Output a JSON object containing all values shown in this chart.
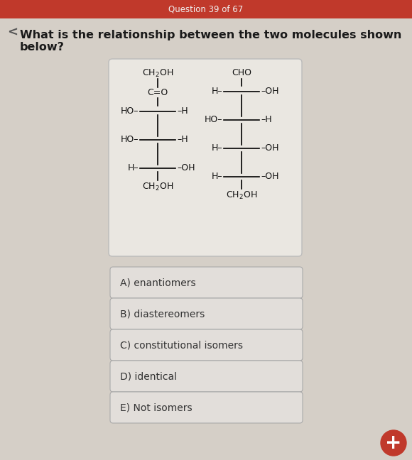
{
  "header_bg_color": "#c0392b",
  "header_text": "Question 39 of 67",
  "header_text_color": "#f0f0f0",
  "bg_color": "#d5cfc7",
  "question_text": "What is the relationship between the two molecules shown below?",
  "question_text_color": "#1a1a1a",
  "molecule_box_bg": "#eae7e1",
  "molecule_box_edge": "#bbbbbb",
  "answer_box_bg": "#e2deda",
  "answer_box_edge": "#aaaaaa",
  "answer_text_color": "#333333",
  "answers": [
    "A) enantiomers",
    "B) diastereomers",
    "C) constitutional isomers",
    "D) identical",
    "E) Not isomers"
  ],
  "fab_color": "#c0392b",
  "fab_text": "+"
}
